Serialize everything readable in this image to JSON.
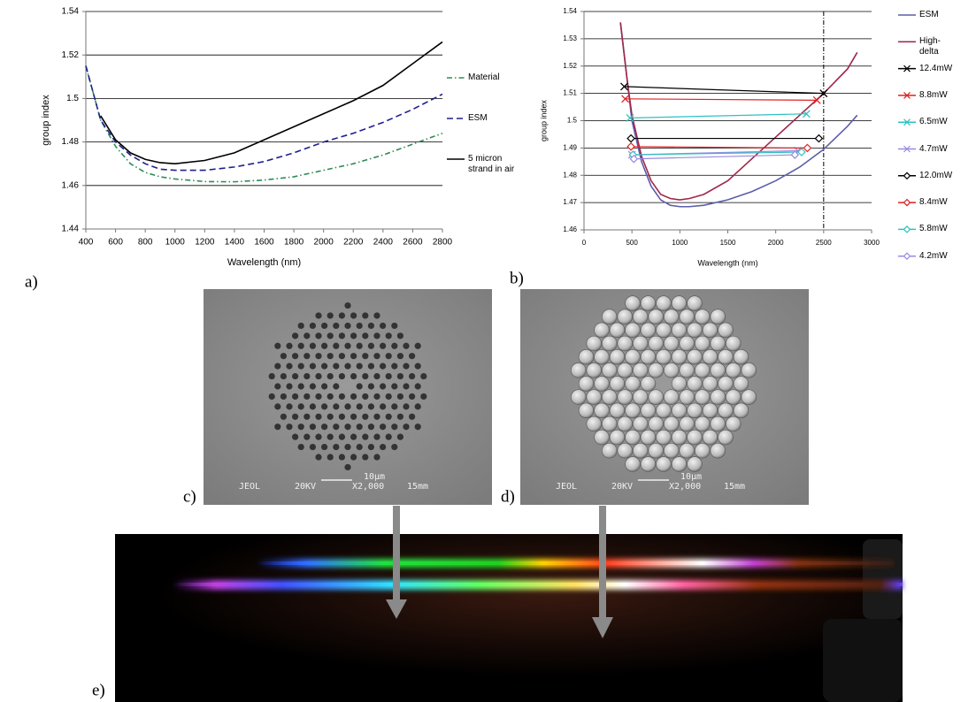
{
  "chart_data": [
    {
      "type": "line",
      "xlabel": "Wavelength (nm)",
      "ylabel": "group index",
      "x": [
        400,
        500,
        600,
        700,
        800,
        900,
        1000,
        1200,
        1400,
        1600,
        1800,
        2000,
        2200,
        2400,
        2600,
        2800
      ],
      "xlim": [
        400,
        2800
      ],
      "xticks": [
        400,
        600,
        800,
        1000,
        1200,
        1400,
        1600,
        1800,
        2000,
        2200,
        2400,
        2600,
        2800
      ],
      "ylim": [
        1.44,
        1.54
      ],
      "yticks": [
        1.44,
        1.46,
        1.48,
        1.5,
        1.52,
        1.54
      ],
      "grid": true,
      "series": [
        {
          "name": "Material",
          "color": "#2e8b57",
          "dash": "dashdot",
          "values": [
            1.515,
            1.49,
            1.478,
            1.47,
            1.466,
            1.464,
            1.463,
            1.4618,
            1.4617,
            1.4625,
            1.464,
            1.467,
            1.47,
            1.474,
            1.479,
            1.484
          ]
        },
        {
          "name": "ESM",
          "color": "#1f1f8f",
          "dash": "dash",
          "values": [
            1.515,
            1.49,
            1.48,
            1.474,
            1.47,
            1.4675,
            1.467,
            1.467,
            1.4685,
            1.471,
            1.475,
            1.48,
            1.484,
            1.489,
            1.495,
            1.502
          ]
        },
        {
          "name": "5 micron strand in air",
          "color": "#000000",
          "dash": "solid",
          "values": [
            null,
            1.492,
            1.481,
            1.475,
            1.472,
            1.4705,
            1.47,
            1.4715,
            1.475,
            1.481,
            1.487,
            1.493,
            1.499,
            1.506,
            1.516,
            1.526
          ]
        }
      ]
    },
    {
      "type": "line",
      "xlabel": "Wavelength (nm)",
      "ylabel": "group index",
      "x": [
        380,
        450,
        500,
        600,
        700,
        800,
        900,
        1000,
        1100,
        1250,
        1500,
        1750,
        2000,
        2250,
        2500,
        2750,
        2850
      ],
      "xlim": [
        0,
        3000
      ],
      "xticks": [
        0,
        500,
        1000,
        1500,
        2000,
        2500,
        3000
      ],
      "ylim": [
        1.46,
        1.54
      ],
      "yticks": [
        1.46,
        1.47,
        1.48,
        1.49,
        1.5,
        1.51,
        1.52,
        1.53,
        1.54
      ],
      "grid": true,
      "vline": 2500,
      "series": [
        {
          "name": "ESM",
          "color": "#5b5ea6",
          "dash": "solid",
          "values": [
            1.536,
            1.515,
            1.5,
            1.485,
            1.476,
            1.471,
            1.469,
            1.4685,
            1.4685,
            1.469,
            1.471,
            1.474,
            1.478,
            1.483,
            1.4895,
            1.498,
            1.502
          ]
        },
        {
          "name": "High-delta",
          "color": "#a0264a",
          "dash": "solid",
          "values": [
            1.536,
            1.515,
            1.502,
            1.487,
            1.478,
            1.473,
            1.4715,
            1.471,
            1.4715,
            1.473,
            1.478,
            1.486,
            1.494,
            1.502,
            1.51,
            1.519,
            1.525
          ]
        },
        {
          "name": "12.4mW",
          "color": "#000000",
          "dash": "solid",
          "marker": "x",
          "x": [
            420,
            2500
          ],
          "values": [
            1.5125,
            1.51
          ]
        },
        {
          "name": "8.8mW",
          "color": "#e02020",
          "dash": "solid",
          "marker": "x",
          "x": [
            430,
            2430
          ],
          "values": [
            1.508,
            1.5075
          ]
        },
        {
          "name": "6.5mW",
          "color": "#30c0c0",
          "dash": "solid",
          "marker": "x",
          "x": [
            480,
            2320
          ],
          "values": [
            1.501,
            1.5025
          ]
        },
        {
          "name": "4.7mW",
          "color": "#9a8ae0",
          "dash": "solid",
          "marker": "x",
          "x": [
            500,
            2230
          ],
          "values": [
            1.4875,
            1.489
          ]
        },
        {
          "name": "12.0mW",
          "color": "#000000",
          "dash": "solid",
          "marker": "diamond",
          "x": [
            490,
            2450
          ],
          "values": [
            1.4935,
            1.4935
          ]
        },
        {
          "name": "8.4mW",
          "color": "#e02020",
          "dash": "solid",
          "marker": "diamond",
          "x": [
            490,
            2330
          ],
          "values": [
            1.4905,
            1.49
          ]
        },
        {
          "name": "5.8mW",
          "color": "#30c0c0",
          "dash": "solid",
          "marker": "diamond",
          "x": [
            510,
            2270
          ],
          "values": [
            1.4875,
            1.4885
          ]
        },
        {
          "name": "4.2mW",
          "color": "#9a8ae0",
          "dash": "solid",
          "marker": "diamond",
          "x": [
            520,
            2200
          ],
          "values": [
            1.486,
            1.4875
          ]
        }
      ]
    }
  ],
  "panels": {
    "labels": [
      "a)",
      "b)",
      "c)",
      "d)",
      "e)"
    ]
  },
  "micrographs": [
    {
      "caption": [
        "JEOL",
        "20KV",
        "X2,000",
        "15mm"
      ],
      "scale_bar": "10μm"
    },
    {
      "caption": [
        "JEOL",
        "20KV",
        "X2,000",
        "15mm"
      ],
      "scale_bar": "10μm"
    }
  ]
}
